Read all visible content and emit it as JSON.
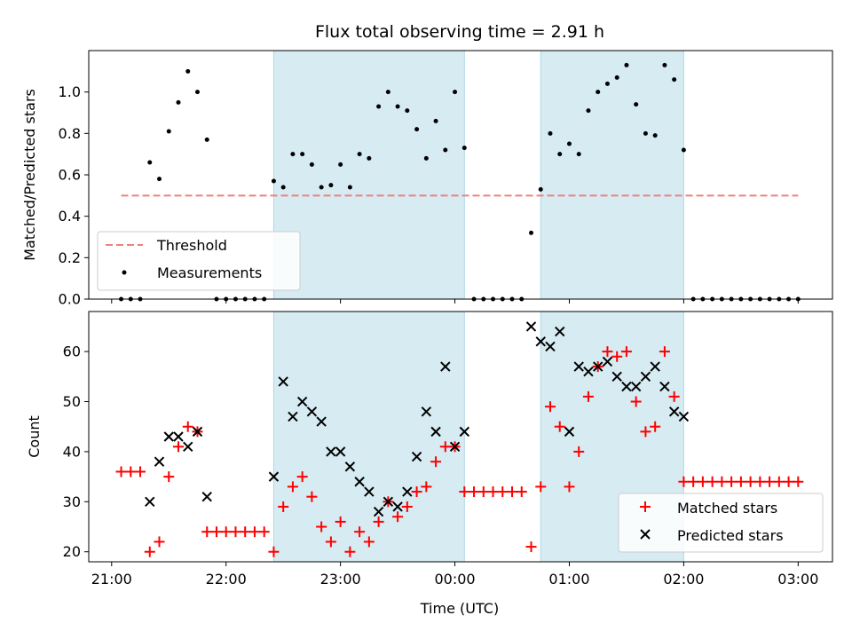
{
  "chart_data": [
    {
      "type": "scatter",
      "title": "Flux total observing time = 2.91 h",
      "xlabel": "",
      "ylabel": "Matched/Predicted stars",
      "xlim": [
        "20:48",
        "03:18"
      ],
      "ylim": [
        0,
        1.2
      ],
      "yticks": [
        0.0,
        0.2,
        0.4,
        0.6,
        0.8,
        1.0
      ],
      "ytick_labels": [
        "0.0",
        "0.2",
        "0.4",
        "0.6",
        "0.8",
        "1.0"
      ],
      "shaded_intervals": [
        [
          "22:25",
          "00:05"
        ],
        [
          "00:45",
          "02:00"
        ]
      ],
      "threshold": {
        "name": "Threshold",
        "value": 0.5,
        "x_range": [
          "21:05",
          "03:00"
        ],
        "color": "#f08080"
      },
      "legend": {
        "position": "lower left",
        "entries": [
          "Threshold",
          "Measurements"
        ]
      },
      "series": [
        {
          "name": "Measurements",
          "color": "#000000",
          "marker": "dot",
          "points": [
            [
              "21:05",
              0.0
            ],
            [
              "21:10",
              0.0
            ],
            [
              "21:15",
              0.0
            ],
            [
              "21:20",
              0.66
            ],
            [
              "21:25",
              0.58
            ],
            [
              "21:30",
              0.81
            ],
            [
              "21:35",
              0.95
            ],
            [
              "21:40",
              1.1
            ],
            [
              "21:45",
              1.0
            ],
            [
              "21:50",
              0.77
            ],
            [
              "21:55",
              0.0
            ],
            [
              "22:00",
              0.0
            ],
            [
              "22:05",
              0.0
            ],
            [
              "22:10",
              0.0
            ],
            [
              "22:15",
              0.0
            ],
            [
              "22:20",
              0.0
            ],
            [
              "22:25",
              0.57
            ],
            [
              "22:30",
              0.54
            ],
            [
              "22:35",
              0.7
            ],
            [
              "22:40",
              0.7
            ],
            [
              "22:45",
              0.65
            ],
            [
              "22:50",
              0.54
            ],
            [
              "22:55",
              0.55
            ],
            [
              "23:00",
              0.65
            ],
            [
              "23:05",
              0.54
            ],
            [
              "23:10",
              0.7
            ],
            [
              "23:15",
              0.68
            ],
            [
              "23:20",
              0.93
            ],
            [
              "23:25",
              1.0
            ],
            [
              "23:30",
              0.93
            ],
            [
              "23:35",
              0.91
            ],
            [
              "23:40",
              0.82
            ],
            [
              "23:45",
              0.68
            ],
            [
              "23:50",
              0.86
            ],
            [
              "23:55",
              0.72
            ],
            [
              "00:00",
              1.0
            ],
            [
              "00:05",
              0.73
            ],
            [
              "00:10",
              0.0
            ],
            [
              "00:15",
              0.0
            ],
            [
              "00:20",
              0.0
            ],
            [
              "00:25",
              0.0
            ],
            [
              "00:30",
              0.0
            ],
            [
              "00:35",
              0.0
            ],
            [
              "00:40",
              0.32
            ],
            [
              "00:45",
              0.53
            ],
            [
              "00:50",
              0.8
            ],
            [
              "00:55",
              0.7
            ],
            [
              "01:00",
              0.75
            ],
            [
              "01:05",
              0.7
            ],
            [
              "01:10",
              0.91
            ],
            [
              "01:15",
              1.0
            ],
            [
              "01:20",
              1.04
            ],
            [
              "01:25",
              1.07
            ],
            [
              "01:30",
              1.13
            ],
            [
              "01:35",
              0.94
            ],
            [
              "01:40",
              0.8
            ],
            [
              "01:45",
              0.79
            ],
            [
              "01:50",
              1.13
            ],
            [
              "01:55",
              1.06
            ],
            [
              "02:00",
              0.72
            ],
            [
              "02:05",
              0.0
            ],
            [
              "02:10",
              0.0
            ],
            [
              "02:15",
              0.0
            ],
            [
              "02:20",
              0.0
            ],
            [
              "02:25",
              0.0
            ],
            [
              "02:30",
              0.0
            ],
            [
              "02:35",
              0.0
            ],
            [
              "02:40",
              0.0
            ],
            [
              "02:45",
              0.0
            ],
            [
              "02:50",
              0.0
            ],
            [
              "02:55",
              0.0
            ],
            [
              "03:00",
              0.0
            ]
          ]
        }
      ]
    },
    {
      "type": "scatter",
      "title": "",
      "xlabel": "Time (UTC)",
      "ylabel": "Count",
      "xlim": [
        "20:48",
        "03:18"
      ],
      "ylim": [
        18,
        68
      ],
      "xticks": [
        "21:00",
        "22:00",
        "23:00",
        "00:00",
        "01:00",
        "02:00",
        "03:00"
      ],
      "yticks": [
        20,
        30,
        40,
        50,
        60
      ],
      "ytick_labels": [
        "20",
        "30",
        "40",
        "50",
        "60"
      ],
      "shaded_intervals": [
        [
          "22:25",
          "00:05"
        ],
        [
          "00:45",
          "02:00"
        ]
      ],
      "legend": {
        "position": "lower right",
        "entries": [
          "Matched stars",
          "Predicted stars"
        ]
      },
      "series": [
        {
          "name": "Matched stars",
          "color": "#ff0000",
          "marker": "plus",
          "points": [
            [
              "21:05",
              36
            ],
            [
              "21:10",
              36
            ],
            [
              "21:15",
              36
            ],
            [
              "21:20",
              20
            ],
            [
              "21:25",
              22
            ],
            [
              "21:30",
              35
            ],
            [
              "21:35",
              41
            ],
            [
              "21:40",
              45
            ],
            [
              "21:45",
              44
            ],
            [
              "21:50",
              24
            ],
            [
              "21:55",
              24
            ],
            [
              "22:00",
              24
            ],
            [
              "22:05",
              24
            ],
            [
              "22:10",
              24
            ],
            [
              "22:15",
              24
            ],
            [
              "22:20",
              24
            ],
            [
              "22:25",
              20
            ],
            [
              "22:30",
              29
            ],
            [
              "22:35",
              33
            ],
            [
              "22:40",
              35
            ],
            [
              "22:45",
              31
            ],
            [
              "22:50",
              25
            ],
            [
              "22:55",
              22
            ],
            [
              "23:00",
              26
            ],
            [
              "23:05",
              20
            ],
            [
              "23:10",
              24
            ],
            [
              "23:15",
              22
            ],
            [
              "23:20",
              26
            ],
            [
              "23:25",
              30
            ],
            [
              "23:30",
              27
            ],
            [
              "23:35",
              29
            ],
            [
              "23:40",
              32
            ],
            [
              "23:45",
              33
            ],
            [
              "23:50",
              38
            ],
            [
              "23:55",
              41
            ],
            [
              "00:00",
              41
            ],
            [
              "00:05",
              32
            ],
            [
              "00:10",
              32
            ],
            [
              "00:15",
              32
            ],
            [
              "00:20",
              32
            ],
            [
              "00:25",
              32
            ],
            [
              "00:30",
              32
            ],
            [
              "00:35",
              32
            ],
            [
              "00:40",
              21
            ],
            [
              "00:45",
              33
            ],
            [
              "00:50",
              49
            ],
            [
              "00:55",
              45
            ],
            [
              "01:00",
              33
            ],
            [
              "01:05",
              40
            ],
            [
              "01:10",
              51
            ],
            [
              "01:15",
              57
            ],
            [
              "01:20",
              60
            ],
            [
              "01:25",
              59
            ],
            [
              "01:30",
              60
            ],
            [
              "01:35",
              50
            ],
            [
              "01:40",
              44
            ],
            [
              "01:45",
              45
            ],
            [
              "01:50",
              60
            ],
            [
              "01:55",
              51
            ],
            [
              "02:00",
              34
            ],
            [
              "02:05",
              34
            ],
            [
              "02:10",
              34
            ],
            [
              "02:15",
              34
            ],
            [
              "02:20",
              34
            ],
            [
              "02:25",
              34
            ],
            [
              "02:30",
              34
            ],
            [
              "02:35",
              34
            ],
            [
              "02:40",
              34
            ],
            [
              "02:45",
              34
            ],
            [
              "02:50",
              34
            ],
            [
              "02:55",
              34
            ],
            [
              "03:00",
              34
            ]
          ]
        },
        {
          "name": "Predicted stars",
          "color": "#000000",
          "marker": "x",
          "points": [
            [
              "21:20",
              30
            ],
            [
              "21:25",
              38
            ],
            [
              "21:30",
              43
            ],
            [
              "21:35",
              43
            ],
            [
              "21:40",
              41
            ],
            [
              "21:45",
              44
            ],
            [
              "21:50",
              31
            ],
            [
              "22:25",
              35
            ],
            [
              "22:30",
              54
            ],
            [
              "22:35",
              47
            ],
            [
              "22:40",
              50
            ],
            [
              "22:45",
              48
            ],
            [
              "22:50",
              46
            ],
            [
              "22:55",
              40
            ],
            [
              "23:00",
              40
            ],
            [
              "23:05",
              37
            ],
            [
              "23:10",
              34
            ],
            [
              "23:15",
              32
            ],
            [
              "23:20",
              28
            ],
            [
              "23:25",
              30
            ],
            [
              "23:30",
              29
            ],
            [
              "23:35",
              32
            ],
            [
              "23:40",
              39
            ],
            [
              "23:45",
              48
            ],
            [
              "23:50",
              44
            ],
            [
              "23:55",
              57
            ],
            [
              "00:00",
              41
            ],
            [
              "00:05",
              44
            ],
            [
              "00:40",
              65
            ],
            [
              "00:45",
              62
            ],
            [
              "00:50",
              61
            ],
            [
              "00:55",
              64
            ],
            [
              "01:00",
              44
            ],
            [
              "01:05",
              57
            ],
            [
              "01:10",
              56
            ],
            [
              "01:15",
              57
            ],
            [
              "01:20",
              58
            ],
            [
              "01:25",
              55
            ],
            [
              "01:30",
              53
            ],
            [
              "01:35",
              53
            ],
            [
              "01:40",
              55
            ],
            [
              "01:45",
              57
            ],
            [
              "01:50",
              53
            ],
            [
              "01:55",
              48
            ],
            [
              "02:00",
              47
            ]
          ]
        }
      ]
    }
  ]
}
